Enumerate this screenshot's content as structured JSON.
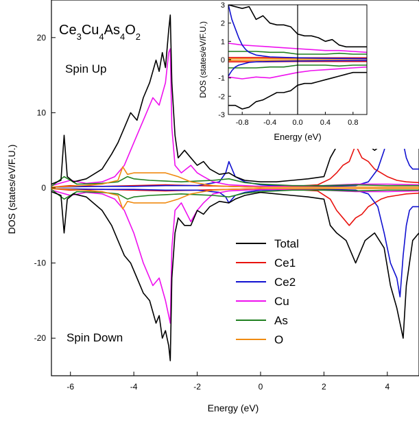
{
  "chart_data": {
    "type": "line",
    "title_html": [
      "Ce",
      "3",
      "Cu",
      "4",
      "As",
      "4",
      "O",
      "2"
    ],
    "xlabel": "Energy (eV)",
    "ylabel": "DOS (states/eV/F.U.)",
    "xlim": [
      -6.6,
      5.0
    ],
    "ylim": [
      -25,
      25
    ],
    "xticks": [
      -6,
      -4,
      -2,
      0,
      2,
      4
    ],
    "yticks": [
      -20,
      -10,
      0,
      10,
      20
    ],
    "xtick_labels": [
      "-6",
      "-4",
      "-2",
      "0",
      "2",
      "4"
    ],
    "ytick_labels": [
      "-20",
      "-10",
      "0",
      "10",
      "20"
    ],
    "annotations": {
      "spin_up": "Spin Up",
      "spin_down": "Spin Down"
    },
    "legend_position": "lower-right",
    "colors": {
      "Total": "#000000",
      "Ce1": "#e8120e",
      "Ce2": "#1010d0",
      "Cu": "#ee10ee",
      "As": "#1f7f1f",
      "O": "#f08a10"
    },
    "series": [
      {
        "name": "Total",
        "color": "#000000",
        "x": [
          -6.6,
          -6.3,
          -6.2,
          -6.1,
          -5.9,
          -5.5,
          -5.0,
          -4.7,
          -4.5,
          -4.3,
          -4.1,
          -3.9,
          -3.7,
          -3.5,
          -3.3,
          -3.2,
          -3.1,
          -3.0,
          -2.9,
          -2.85,
          -2.8,
          -2.7,
          -2.6,
          -2.4,
          -2.2,
          -2.0,
          -1.8,
          -1.6,
          -1.3,
          -1.0,
          -0.8,
          -0.5,
          0.0,
          0.5,
          1.0,
          1.5,
          2.0,
          2.2,
          2.4,
          2.7,
          3.0,
          3.3,
          3.6,
          3.9,
          4.1,
          4.3,
          4.4,
          4.5,
          4.6,
          4.8,
          5.0
        ],
        "up": [
          0.5,
          1.0,
          7.0,
          1.5,
          0.8,
          1.2,
          2.5,
          4.5,
          6.0,
          8.0,
          10.0,
          9.0,
          12.0,
          14.0,
          17.0,
          15.5,
          18.0,
          16.0,
          21.0,
          23.0,
          14.0,
          7.0,
          4.0,
          5.0,
          4.0,
          3.0,
          3.5,
          2.5,
          1.8,
          2.0,
          1.5,
          1.0,
          0.8,
          0.8,
          1.0,
          1.2,
          1.5,
          4.0,
          5.5,
          6.0,
          8.0,
          6.0,
          5.0,
          6.0,
          9.0,
          11.0,
          16.0,
          21.0,
          14.0,
          7.0,
          6.0
        ],
        "dn": [
          -0.5,
          -1.0,
          -6.0,
          -1.5,
          -0.8,
          -1.2,
          -3.0,
          -5.0,
          -7.0,
          -9.0,
          -10.0,
          -12.0,
          -14.0,
          -15.0,
          -18.0,
          -17.0,
          -20.0,
          -19.0,
          -21.0,
          -23.0,
          -12.0,
          -6.0,
          -4.0,
          -5.0,
          -5.0,
          -3.0,
          -3.5,
          -2.5,
          -1.8,
          -2.0,
          -1.5,
          -1.0,
          -0.6,
          -0.8,
          -1.0,
          -1.2,
          -1.5,
          -5.0,
          -6.0,
          -7.0,
          -10.0,
          -7.0,
          -6.0,
          -8.0,
          -13.0,
          -16.0,
          -18.0,
          -20.0,
          -13.0,
          -7.0,
          -6.0
        ]
      },
      {
        "name": "Ce1",
        "color": "#e8120e",
        "x": [
          -6.6,
          -6.0,
          -5.0,
          -4.0,
          -3.0,
          -2.0,
          -1.0,
          0.0,
          1.0,
          1.8,
          2.2,
          2.4,
          2.6,
          2.8,
          3.0,
          3.2,
          3.4,
          3.6,
          3.8,
          4.0,
          4.3,
          4.6,
          5.0
        ],
        "up": [
          0.1,
          0.3,
          0.2,
          0.3,
          0.4,
          0.3,
          0.2,
          0.1,
          0.2,
          0.4,
          1.2,
          2.0,
          3.0,
          3.5,
          5.7,
          4.0,
          3.5,
          2.5,
          2.0,
          1.5,
          1.0,
          0.8,
          0.7
        ],
        "dn": [
          -0.1,
          -0.3,
          -0.2,
          -0.3,
          -0.4,
          -0.3,
          -0.2,
          -0.1,
          -0.2,
          -0.4,
          -1.5,
          -3.0,
          -4.0,
          -5.0,
          -4.0,
          -3.5,
          -2.5,
          -2.0,
          -1.5,
          -1.2,
          -1.0,
          -0.8,
          -0.7
        ]
      },
      {
        "name": "Ce2",
        "color": "#1010d0",
        "x": [
          -6.6,
          -5.0,
          -4.0,
          -3.0,
          -2.0,
          -1.3,
          -1.1,
          -1.0,
          -0.8,
          -0.5,
          0.0,
          1.0,
          2.0,
          3.0,
          3.4,
          3.7,
          3.9,
          4.1,
          4.3,
          4.4,
          4.5,
          4.6,
          4.7,
          4.8,
          5.0
        ],
        "up": [
          0.1,
          0.2,
          0.2,
          0.3,
          0.3,
          0.8,
          2.0,
          3.5,
          1.5,
          0.8,
          0.4,
          0.2,
          0.2,
          0.3,
          0.8,
          2.5,
          5.0,
          8.0,
          10.0,
          12.0,
          6.0,
          4.0,
          3.0,
          2.5,
          2.5
        ],
        "dn": [
          -0.1,
          -0.2,
          -0.2,
          -0.3,
          -0.3,
          -0.6,
          -1.2,
          -2.0,
          -1.0,
          -0.6,
          -0.3,
          -0.2,
          -0.2,
          -0.3,
          -0.8,
          -2.5,
          -6.0,
          -10.0,
          -12.0,
          -14.5,
          -9.0,
          -5.0,
          -3.0,
          -2.5,
          -2.5
        ]
      },
      {
        "name": "Cu",
        "color": "#ee10ee",
        "x": [
          -6.6,
          -6.0,
          -5.5,
          -5.0,
          -4.6,
          -4.3,
          -4.0,
          -3.7,
          -3.4,
          -3.2,
          -3.0,
          -2.9,
          -2.85,
          -2.8,
          -2.7,
          -2.5,
          -2.2,
          -2.0,
          -1.8,
          -1.5,
          -1.0,
          0.0,
          1.0,
          2.0,
          3.0,
          4.0,
          5.0
        ],
        "up": [
          0.3,
          1.0,
          0.6,
          0.8,
          1.5,
          3.0,
          6.0,
          9.0,
          12.0,
          11.0,
          14.0,
          18.0,
          18.5,
          8.0,
          3.0,
          2.0,
          3.0,
          2.0,
          1.5,
          0.8,
          0.4,
          0.2,
          0.2,
          0.3,
          0.5,
          0.5,
          0.4
        ],
        "dn": [
          -0.3,
          -1.0,
          -0.6,
          -0.8,
          -1.5,
          -3.0,
          -6.0,
          -10.0,
          -13.0,
          -12.0,
          -15.0,
          -17.0,
          -18.0,
          -8.0,
          -3.0,
          -2.0,
          -4.5,
          -3.0,
          -2.0,
          -0.8,
          -0.4,
          -0.2,
          -0.2,
          -0.3,
          -0.5,
          -0.5,
          -0.4
        ]
      },
      {
        "name": "As",
        "color": "#1f7f1f",
        "x": [
          -6.6,
          -6.2,
          -5.8,
          -5.0,
          -4.5,
          -4.2,
          -4.0,
          -3.5,
          -3.0,
          -2.5,
          -2.0,
          -1.5,
          -1.0,
          -0.5,
          0.0,
          1.0,
          2.0,
          3.0,
          4.0,
          5.0
        ],
        "up": [
          0.2,
          1.5,
          0.5,
          0.6,
          0.8,
          1.5,
          1.2,
          1.0,
          0.9,
          0.8,
          0.9,
          1.0,
          1.2,
          0.7,
          0.5,
          0.3,
          0.3,
          0.4,
          0.3,
          0.3
        ],
        "dn": [
          -0.2,
          -1.5,
          -0.5,
          -0.6,
          -0.8,
          -1.5,
          -1.2,
          -1.0,
          -0.9,
          -0.8,
          -0.9,
          -1.0,
          -1.2,
          -0.7,
          -0.5,
          -0.3,
          -0.3,
          -0.4,
          -0.3,
          -0.3
        ]
      },
      {
        "name": "O",
        "color": "#f08a10",
        "x": [
          -6.6,
          -6.0,
          -5.0,
          -4.5,
          -4.35,
          -4.2,
          -4.0,
          -3.5,
          -3.0,
          -2.6,
          -2.2,
          -1.8,
          -1.5,
          -1.0,
          0.0,
          1.0,
          2.0,
          3.0,
          4.0,
          5.0
        ],
        "up": [
          0.1,
          0.2,
          0.5,
          1.0,
          2.8,
          1.8,
          2.0,
          2.0,
          2.0,
          1.5,
          0.8,
          0.5,
          0.3,
          0.2,
          0.1,
          0.1,
          0.1,
          0.1,
          0.1,
          0.1
        ],
        "dn": [
          -0.1,
          -0.2,
          -0.5,
          -1.0,
          -2.8,
          -1.8,
          -2.0,
          -2.0,
          -2.0,
          -1.5,
          -0.8,
          -0.5,
          -0.3,
          -0.2,
          -0.1,
          -0.1,
          -0.1,
          -0.1,
          -0.1,
          -0.1
        ]
      }
    ],
    "inset": {
      "xlabel": "Energy (eV)",
      "ylabel": "DOS (states/eV/F.U.)",
      "xlim": [
        -1.0,
        1.0
      ],
      "ylim": [
        -3,
        3
      ],
      "xticks": [
        -0.8,
        -0.4,
        0.0,
        0.4,
        0.8
      ],
      "xtick_labels": [
        "-0.8",
        "-0.4",
        "0.0",
        "0.4",
        "0.8"
      ],
      "yticks": [
        -3,
        -2,
        -1,
        0,
        1,
        2,
        3
      ],
      "ytick_labels": [
        "-3",
        "-2",
        "-1",
        "0",
        "1",
        "2",
        "3"
      ],
      "fermi_line_x": 0.0,
      "series": [
        {
          "name": "Total",
          "color": "#000000",
          "x": [
            -1.0,
            -0.9,
            -0.8,
            -0.7,
            -0.6,
            -0.5,
            -0.4,
            -0.3,
            -0.2,
            -0.1,
            0.0,
            0.1,
            0.2,
            0.3,
            0.4,
            0.5,
            0.6,
            0.7,
            0.8,
            0.9,
            1.0
          ],
          "up": [
            3.0,
            2.9,
            2.8,
            2.9,
            2.2,
            2.4,
            2.0,
            1.9,
            1.9,
            1.8,
            1.4,
            1.3,
            1.3,
            1.2,
            1.0,
            1.1,
            0.8,
            0.7,
            0.7,
            0.7,
            0.7
          ],
          "dn": [
            -2.5,
            -2.5,
            -2.7,
            -2.6,
            -2.3,
            -2.2,
            -2.0,
            -1.8,
            -1.8,
            -1.7,
            -1.4,
            -1.3,
            -1.3,
            -1.2,
            -1.1,
            -1.0,
            -0.9,
            -0.8,
            -0.7,
            -0.7,
            -0.7
          ]
        },
        {
          "name": "Ce2",
          "color": "#1010d0",
          "x": [
            -1.0,
            -0.95,
            -0.9,
            -0.85,
            -0.8,
            -0.75,
            -0.7,
            -0.6,
            -0.4,
            0.0,
            0.4,
            1.0
          ],
          "up": [
            3.0,
            2.2,
            1.7,
            1.2,
            0.8,
            0.55,
            0.4,
            0.25,
            0.15,
            0.1,
            0.08,
            0.05
          ],
          "dn": [
            -0.9,
            -0.6,
            -0.4,
            -0.3,
            -0.25,
            -0.2,
            -0.15,
            -0.12,
            -0.1,
            -0.08,
            -0.06,
            -0.05
          ]
        },
        {
          "name": "Cu",
          "color": "#ee10ee",
          "x": [
            -1.0,
            -0.8,
            -0.6,
            -0.4,
            -0.2,
            0.0,
            0.2,
            0.4,
            0.6,
            0.8,
            1.0
          ],
          "up": [
            0.9,
            0.8,
            0.75,
            0.7,
            0.65,
            0.6,
            0.55,
            0.5,
            0.5,
            0.45,
            0.4
          ],
          "dn": [
            -0.95,
            -1.05,
            -0.95,
            -1.0,
            -0.85,
            -0.7,
            -0.6,
            -0.55,
            -0.5,
            -0.45,
            -0.4
          ]
        },
        {
          "name": "As",
          "color": "#1f7f1f",
          "x": [
            -1.0,
            -0.8,
            -0.6,
            -0.4,
            -0.2,
            0.0,
            0.2,
            0.4,
            0.6,
            0.8,
            1.0
          ],
          "up": [
            0.45,
            0.45,
            0.45,
            0.4,
            0.4,
            0.3,
            0.3,
            0.3,
            0.35,
            0.3,
            0.3
          ],
          "dn": [
            -0.45,
            -0.45,
            -0.45,
            -0.4,
            -0.4,
            -0.3,
            -0.3,
            -0.3,
            -0.35,
            -0.3,
            -0.3
          ]
        },
        {
          "name": "Ce1",
          "color": "#e8120e",
          "x": [
            -1.0,
            -0.5,
            0.0,
            0.5,
            1.0
          ],
          "up": [
            0.12,
            0.12,
            0.1,
            0.1,
            0.1
          ],
          "dn": [
            -0.12,
            -0.12,
            -0.1,
            -0.1,
            -0.1
          ]
        },
        {
          "name": "O",
          "color": "#f08a10",
          "x": [
            -1.0,
            -0.5,
            0.0,
            0.5,
            1.0
          ],
          "up": [
            0.05,
            0.05,
            0.04,
            0.04,
            0.04
          ],
          "dn": [
            -0.05,
            -0.05,
            -0.04,
            -0.04,
            -0.04
          ]
        }
      ]
    }
  }
}
